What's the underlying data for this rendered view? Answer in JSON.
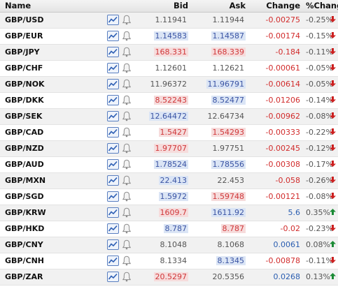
{
  "headers": {
    "name": "Name",
    "bid": "Bid",
    "ask": "Ask",
    "change": "Change",
    "pct_change": "%Change"
  },
  "colors": {
    "negative": "#d12b2b",
    "positive": "#2a5db0",
    "arrow_down": "#cc1f1f",
    "arrow_up": "#1a8a34"
  },
  "icons": [
    "chart-icon",
    "bell-icon"
  ],
  "rows": [
    {
      "pair": "GBP/USD",
      "bid": "1.11941",
      "bid_state": "flat",
      "ask": "1.11944",
      "ask_state": "flat",
      "change": "-0.00275",
      "pct": "-0.25%",
      "dir": "down"
    },
    {
      "pair": "GBP/EUR",
      "bid": "1.14583",
      "bid_state": "up",
      "ask": "1.14587",
      "ask_state": "up",
      "change": "-0.00174",
      "pct": "-0.15%",
      "dir": "down"
    },
    {
      "pair": "GBP/JPY",
      "bid": "168.331",
      "bid_state": "down",
      "ask": "168.339",
      "ask_state": "down",
      "change": "-0.184",
      "pct": "-0.11%",
      "dir": "down"
    },
    {
      "pair": "GBP/CHF",
      "bid": "1.12601",
      "bid_state": "flat",
      "ask": "1.12621",
      "ask_state": "flat",
      "change": "-0.00061",
      "pct": "-0.05%",
      "dir": "down"
    },
    {
      "pair": "GBP/NOK",
      "bid": "11.96372",
      "bid_state": "flat",
      "ask": "11.96791",
      "ask_state": "up",
      "change": "-0.00614",
      "pct": "-0.05%",
      "dir": "down"
    },
    {
      "pair": "GBP/DKK",
      "bid": "8.52243",
      "bid_state": "down",
      "ask": "8.52477",
      "ask_state": "up",
      "change": "-0.01206",
      "pct": "-0.14%",
      "dir": "down"
    },
    {
      "pair": "GBP/SEK",
      "bid": "12.64472",
      "bid_state": "up",
      "ask": "12.64734",
      "ask_state": "flat",
      "change": "-0.00962",
      "pct": "-0.08%",
      "dir": "down"
    },
    {
      "pair": "GBP/CAD",
      "bid": "1.5427",
      "bid_state": "down",
      "ask": "1.54293",
      "ask_state": "down",
      "change": "-0.00333",
      "pct": "-0.22%",
      "dir": "down"
    },
    {
      "pair": "GBP/NZD",
      "bid": "1.97707",
      "bid_state": "down",
      "ask": "1.97751",
      "ask_state": "flat",
      "change": "-0.00245",
      "pct": "-0.12%",
      "dir": "down"
    },
    {
      "pair": "GBP/AUD",
      "bid": "1.78524",
      "bid_state": "up",
      "ask": "1.78556",
      "ask_state": "up",
      "change": "-0.00308",
      "pct": "-0.17%",
      "dir": "down"
    },
    {
      "pair": "GBP/MXN",
      "bid": "22.413",
      "bid_state": "up",
      "ask": "22.453",
      "ask_state": "flat",
      "change": "-0.058",
      "pct": "-0.26%",
      "dir": "down"
    },
    {
      "pair": "GBP/SGD",
      "bid": "1.5972",
      "bid_state": "up",
      "ask": "1.59748",
      "ask_state": "down",
      "change": "-0.00121",
      "pct": "-0.08%",
      "dir": "down"
    },
    {
      "pair": "GBP/KRW",
      "bid": "1609.7",
      "bid_state": "down",
      "ask": "1611.92",
      "ask_state": "up",
      "change": "5.6",
      "pct": "0.35%",
      "dir": "up"
    },
    {
      "pair": "GBP/HKD",
      "bid": "8.787",
      "bid_state": "up",
      "ask": "8.787",
      "ask_state": "down",
      "change": "-0.02",
      "pct": "-0.23%",
      "dir": "down"
    },
    {
      "pair": "GBP/CNY",
      "bid": "8.1048",
      "bid_state": "flat",
      "ask": "8.1068",
      "ask_state": "flat",
      "change": "0.0061",
      "pct": "0.08%",
      "dir": "up"
    },
    {
      "pair": "GBP/CNH",
      "bid": "8.1334",
      "bid_state": "flat",
      "ask": "8.1345",
      "ask_state": "up",
      "change": "-0.00878",
      "pct": "-0.11%",
      "dir": "down"
    },
    {
      "pair": "GBP/ZAR",
      "bid": "20.5297",
      "bid_state": "down",
      "ask": "20.5356",
      "ask_state": "flat",
      "change": "0.0268",
      "pct": "0.13%",
      "dir": "up"
    }
  ]
}
